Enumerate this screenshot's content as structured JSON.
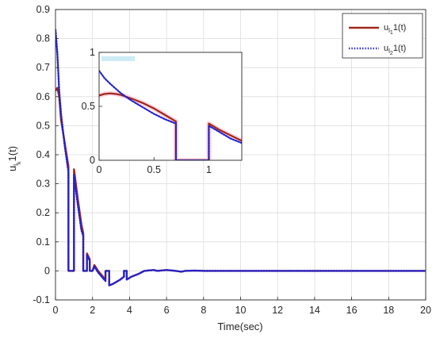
{
  "chart_data": [
    {
      "type": "line",
      "xlabel": "Time(sec)",
      "ylabel": {
        "base": "u",
        "sub1": "l",
        "sub2": "k",
        "tail": "1(t)"
      },
      "xlim": [
        0,
        20
      ],
      "ylim": [
        -0.1,
        0.9
      ],
      "xticks": [
        0,
        2,
        4,
        6,
        8,
        10,
        12,
        14,
        16,
        18,
        20
      ],
      "yticks": [
        -0.1,
        0,
        0.1,
        0.2,
        0.3,
        0.4,
        0.5,
        0.6,
        0.7,
        0.8,
        0.9
      ],
      "grid": true,
      "legend": "top-right",
      "series": [
        {
          "name": {
            "base": "u",
            "sub1": "l",
            "sub2": "1",
            "tail": "1(t)"
          },
          "color": "#a0281e",
          "style": "solid",
          "x": [
            0,
            0.1,
            0.2,
            0.3,
            0.5,
            0.7,
            0.7,
            1.0,
            1.0,
            1.2,
            1.4,
            1.5,
            1.5,
            1.7,
            1.7,
            1.85,
            1.85,
            2.0,
            2.1,
            2.3,
            2.5,
            2.7,
            2.7,
            2.9,
            2.9,
            3.1,
            3.5,
            3.7,
            3.7,
            3.85,
            3.85,
            4.1,
            4.5,
            4.8,
            5.3,
            5.5,
            6.0,
            6.5,
            6.8,
            7.0,
            7.5,
            8.0,
            10.0,
            12.0,
            15.0,
            20.0
          ],
          "y": [
            0.62,
            0.63,
            0.6,
            0.52,
            0.44,
            0.36,
            0.0,
            0.0,
            0.35,
            0.25,
            0.16,
            0.13,
            0.0,
            0.0,
            0.06,
            0.04,
            0.0,
            0.0,
            0.02,
            0.0,
            -0.015,
            -0.03,
            0.0,
            0.0,
            -0.05,
            -0.045,
            -0.03,
            -0.02,
            0.0,
            0.0,
            -0.03,
            -0.02,
            -0.01,
            0.0,
            0.003,
            0.0,
            0.003,
            0.0,
            -0.003,
            0.0,
            0.001,
            0.0,
            0.0,
            0.0,
            0.0,
            0.0
          ]
        },
        {
          "name": {
            "base": "u",
            "sub1": "l",
            "sub2": "2",
            "tail": "1(t)"
          },
          "color": "#2222cc",
          "style": "dotted",
          "x": [
            0,
            0.1,
            0.2,
            0.3,
            0.5,
            0.7,
            0.7,
            1.0,
            1.0,
            1.2,
            1.4,
            1.5,
            1.5,
            1.7,
            1.7,
            1.85,
            1.85,
            2.0,
            2.1,
            2.3,
            2.5,
            2.7,
            2.7,
            2.9,
            2.9,
            3.1,
            3.5,
            3.7,
            3.7,
            3.85,
            3.85,
            4.1,
            4.5,
            4.8,
            5.3,
            5.5,
            6.0,
            6.5,
            6.8,
            7.0,
            7.5,
            8.0,
            10.0,
            12.0,
            15.0,
            20.0
          ],
          "y": [
            0.83,
            0.75,
            0.62,
            0.54,
            0.43,
            0.34,
            0.0,
            0.0,
            0.33,
            0.23,
            0.14,
            0.12,
            0.0,
            0.0,
            0.055,
            0.035,
            0.0,
            0.0,
            0.015,
            -0.005,
            -0.02,
            -0.035,
            0.0,
            0.0,
            -0.05,
            -0.045,
            -0.03,
            -0.02,
            0.0,
            0.0,
            -0.03,
            -0.02,
            -0.01,
            0.0,
            0.003,
            0.0,
            0.003,
            0.0,
            -0.003,
            0.0,
            0.001,
            0.0,
            0.0,
            0.0,
            0.0,
            0.0
          ]
        }
      ]
    },
    {
      "type": "line",
      "role": "inset",
      "xlim": [
        0,
        1.3
      ],
      "ylim": [
        0,
        1
      ],
      "xticks": [
        0,
        0.5,
        1
      ],
      "yticks": [
        0,
        0.5,
        1
      ],
      "grid": false,
      "series": [
        {
          "color": "#a0281e",
          "style": "solid",
          "x": [
            0,
            0.05,
            0.1,
            0.15,
            0.2,
            0.3,
            0.4,
            0.5,
            0.6,
            0.7,
            0.7,
            1.0,
            1.0,
            1.1,
            1.2,
            1.3
          ],
          "y": [
            0.6,
            0.615,
            0.62,
            0.615,
            0.605,
            0.57,
            0.53,
            0.48,
            0.42,
            0.36,
            0.0,
            0.0,
            0.34,
            0.28,
            0.23,
            0.18
          ],
          "halo": true
        },
        {
          "color": "#2222cc",
          "style": "dotted",
          "x": [
            0,
            0.05,
            0.1,
            0.2,
            0.3,
            0.4,
            0.5,
            0.6,
            0.7,
            0.7,
            1.0,
            1.0,
            1.1,
            1.2,
            1.3
          ],
          "y": [
            0.83,
            0.76,
            0.71,
            0.62,
            0.55,
            0.49,
            0.43,
            0.38,
            0.34,
            0.0,
            0.0,
            0.32,
            0.26,
            0.2,
            0.16
          ]
        }
      ]
    }
  ]
}
